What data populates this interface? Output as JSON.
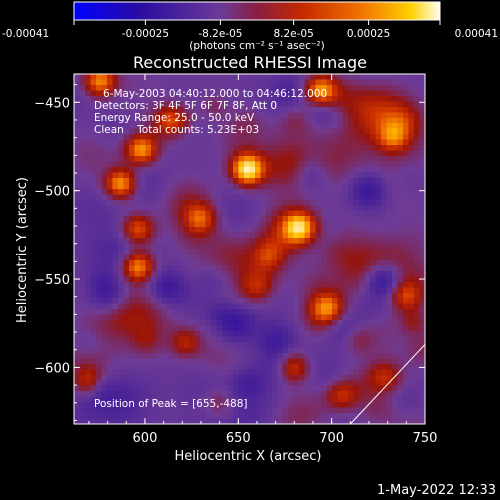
{
  "chart_data": {
    "type": "heatmap",
    "title": "Reconstructed RHESSI Image",
    "xlabel": "Heliocentric X (arcsec)",
    "ylabel": "Heliocentric Y (arcsec)",
    "xlim": [
      562,
      750
    ],
    "ylim": [
      -632,
      -434
    ],
    "x_ticks": [
      600,
      650,
      700,
      750
    ],
    "y_ticks": [
      -450,
      -500,
      -550,
      -600
    ],
    "colorbar": {
      "range": [
        -0.00041,
        0.00041
      ],
      "tick_values": [
        -0.00041,
        -0.00025,
        -8.2e-05,
        8.2e-05,
        0.00025,
        0.00041
      ],
      "tick_labels": [
        "-0.00041",
        "-0.00025",
        "-8.2e-05",
        "8.2e-05",
        "0.00025",
        "0.00041"
      ],
      "unit_label": "(photons cm⁻² s⁻¹ asec⁻²)",
      "colormap": [
        "#0000ff",
        "#3a0c73",
        "#6b3a98",
        "#9f1d0c",
        "#e05a00",
        "#ffc400",
        "#ffffe0"
      ]
    },
    "annotations": {
      "time": "6-May-2003 04:40:12.000 to 04:46:12.000",
      "detectors": "Detectors: 3F 4F 5F 6F 7F 8F, Att 0",
      "energy": "Energy Range: 25.0 - 50.0 keV",
      "clean": "Clean    Total counts: 5.23E+03",
      "peak": "Position of Peak = [655,-488]"
    },
    "peak": {
      "x": 655,
      "y": -488
    },
    "sources": [
      {
        "x": 655,
        "y": -488,
        "value": 0.00041
      },
      {
        "x": 598,
        "y": -477,
        "value": 0.0003
      },
      {
        "x": 576,
        "y": -438,
        "value": 0.00028
      },
      {
        "x": 694,
        "y": -443,
        "value": 0.00029
      },
      {
        "x": 683,
        "y": -521,
        "value": 0.0003
      },
      {
        "x": 596,
        "y": -543,
        "value": 0.0003
      },
      {
        "x": 596,
        "y": -522,
        "value": 0.00024
      },
      {
        "x": 630,
        "y": -516,
        "value": 0.0002
      },
      {
        "x": 587,
        "y": -496,
        "value": 0.00022
      },
      {
        "x": 697,
        "y": -567,
        "value": 0.00022
      },
      {
        "x": 733,
        "y": -470,
        "value": 0.0002
      },
      {
        "x": 740,
        "y": -560,
        "value": 0.00018
      },
      {
        "x": 680,
        "y": -600,
        "value": 0.00018
      },
      {
        "x": 705,
        "y": -616,
        "value": 0.00016
      },
      {
        "x": 622,
        "y": -586,
        "value": 0.00016
      },
      {
        "x": 570,
        "y": -608,
        "value": 0.00016
      },
      {
        "x": 640,
        "y": -620,
        "value": 0.00012
      },
      {
        "x": 729,
        "y": -606,
        "value": 0.00014
      },
      {
        "x": 615,
        "y": -460,
        "value": 0.00018
      },
      {
        "x": 660,
        "y": -555,
        "value": 0.00012
      }
    ],
    "sinks": [
      {
        "x": 728,
        "y": -550,
        "value": -0.0002
      },
      {
        "x": 648,
        "y": -575,
        "value": -0.00018
      },
      {
        "x": 612,
        "y": -555,
        "value": -0.00015
      },
      {
        "x": 720,
        "y": -500,
        "value": -0.00016
      },
      {
        "x": 580,
        "y": -560,
        "value": -0.00014
      },
      {
        "x": 690,
        "y": -490,
        "value": -0.00014
      },
      {
        "x": 670,
        "y": -585,
        "value": -0.00012
      }
    ],
    "limb_line": {
      "x": [
        710,
        750
      ],
      "y": [
        -632,
        -587
      ]
    }
  },
  "timestamp": "1-May-2022 12:33"
}
